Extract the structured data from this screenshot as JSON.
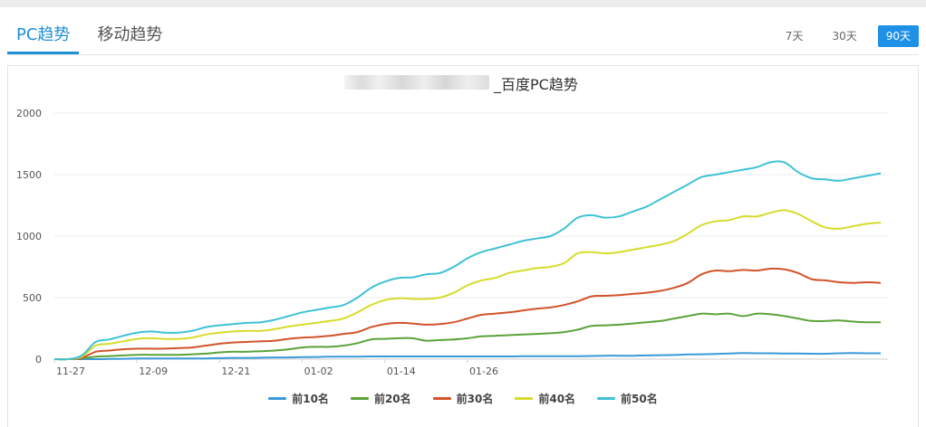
{
  "tabs": [
    {
      "label": "PC趋势",
      "active": true
    },
    {
      "label": "移动趋势",
      "active": false
    }
  ],
  "ranges": [
    {
      "label": "7天",
      "active": false
    },
    {
      "label": "30天",
      "active": false
    },
    {
      "label": "90天",
      "active": true
    }
  ],
  "chart_data": {
    "type": "line",
    "title": "_百度PC趋势",
    "xlabel": "",
    "ylabel": "",
    "ylim": [
      0,
      2000
    ],
    "yticks": [
      0,
      500,
      1000,
      1500,
      2000
    ],
    "xticks": [
      "11-27",
      "12-09",
      "12-21",
      "01-02",
      "01-14",
      "01-26"
    ],
    "legend_position": "bottom",
    "grid": true,
    "x": [
      0,
      2,
      4,
      6,
      8,
      10,
      12,
      14,
      16,
      18,
      20,
      22,
      24,
      26,
      28,
      30,
      32,
      34,
      36,
      38,
      40,
      42,
      44,
      46,
      48,
      50,
      52,
      54,
      56,
      58,
      60,
      62,
      64,
      66,
      68,
      70,
      72,
      74,
      76,
      78,
      80,
      82,
      84,
      86,
      88,
      90,
      92,
      94,
      96,
      98,
      100,
      102,
      104,
      106,
      108,
      110,
      112,
      114,
      116,
      118,
      120
    ],
    "series": [
      {
        "name": "前10名",
        "color": "#3a9ad9",
        "values": [
          0,
          0,
          0,
          0,
          2,
          3,
          5,
          5,
          5,
          5,
          5,
          6,
          8,
          10,
          10,
          12,
          14,
          14,
          16,
          18,
          20,
          20,
          20,
          22,
          22,
          22,
          22,
          22,
          22,
          22,
          22,
          22,
          22,
          22,
          24,
          24,
          24,
          24,
          24,
          26,
          28,
          28,
          28,
          30,
          32,
          34,
          38,
          40,
          42,
          46,
          50,
          48,
          48,
          46,
          46,
          44,
          44,
          48,
          50,
          48,
          48
        ]
      },
      {
        "name": "前20名",
        "color": "#5aa33a",
        "values": [
          0,
          0,
          5,
          20,
          25,
          30,
          35,
          35,
          35,
          35,
          40,
          45,
          55,
          60,
          60,
          65,
          70,
          80,
          95,
          100,
          100,
          110,
          130,
          160,
          165,
          170,
          170,
          150,
          155,
          160,
          170,
          185,
          190,
          195,
          200,
          205,
          210,
          220,
          240,
          270,
          275,
          280,
          290,
          300,
          310,
          330,
          350,
          370,
          365,
          370,
          350,
          370,
          365,
          350,
          330,
          310,
          310,
          315,
          305,
          300,
          300
        ]
      },
      {
        "name": "前30名",
        "color": "#d2532a",
        "values": [
          0,
          0,
          10,
          60,
          70,
          80,
          85,
          85,
          85,
          90,
          95,
          110,
          125,
          135,
          140,
          145,
          150,
          165,
          175,
          180,
          190,
          205,
          220,
          260,
          285,
          295,
          290,
          280,
          285,
          300,
          330,
          360,
          370,
          380,
          395,
          410,
          420,
          440,
          470,
          510,
          515,
          520,
          530,
          540,
          555,
          580,
          620,
          690,
          720,
          715,
          725,
          720,
          735,
          730,
          700,
          650,
          640,
          625,
          620,
          625,
          620
        ]
      },
      {
        "name": "前40名",
        "color": "#d6dc2a",
        "values": [
          0,
          0,
          20,
          110,
          125,
          145,
          165,
          170,
          165,
          165,
          175,
          200,
          215,
          225,
          230,
          230,
          245,
          265,
          280,
          295,
          310,
          330,
          380,
          440,
          480,
          495,
          490,
          490,
          500,
          540,
          600,
          640,
          660,
          700,
          720,
          740,
          750,
          780,
          860,
          870,
          860,
          870,
          890,
          910,
          930,
          960,
          1020,
          1090,
          1120,
          1130,
          1160,
          1160,
          1190,
          1210,
          1180,
          1120,
          1070,
          1060,
          1080,
          1100,
          1110
        ]
      },
      {
        "name": "前50名",
        "color": "#3ec2d4",
        "values": [
          0,
          0,
          30,
          140,
          160,
          190,
          215,
          225,
          215,
          215,
          230,
          260,
          275,
          285,
          295,
          300,
          320,
          350,
          380,
          400,
          420,
          440,
          500,
          580,
          630,
          660,
          665,
          690,
          700,
          750,
          820,
          870,
          900,
          930,
          960,
          980,
          1000,
          1060,
          1150,
          1170,
          1150,
          1160,
          1200,
          1240,
          1300,
          1360,
          1420,
          1480,
          1500,
          1520,
          1540,
          1560,
          1600,
          1600,
          1520,
          1470,
          1460,
          1450,
          1470,
          1490,
          1510
        ]
      }
    ]
  }
}
